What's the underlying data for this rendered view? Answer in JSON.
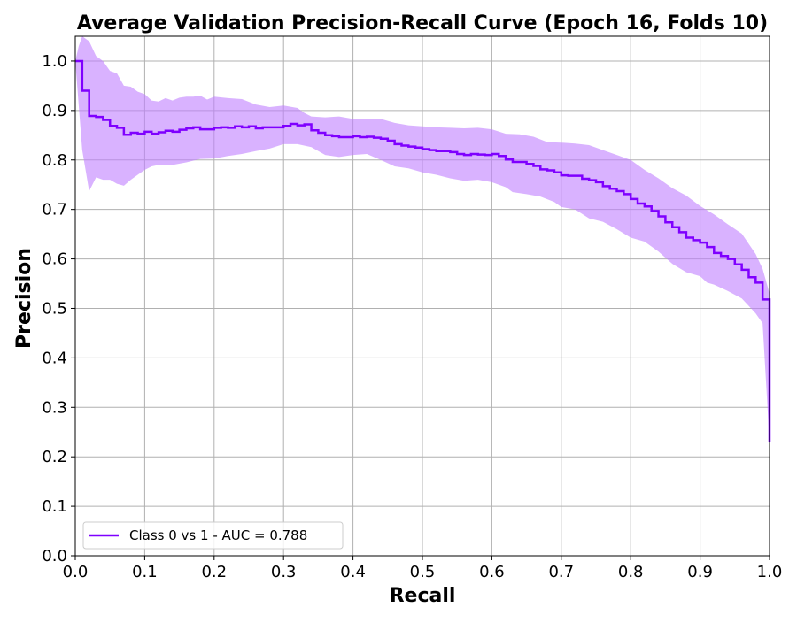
{
  "chart_data": {
    "type": "line",
    "title": "Average Validation Precision-Recall Curve (Epoch 16, Folds 10)",
    "xlabel": "Recall",
    "ylabel": "Precision",
    "xlim": [
      0.0,
      1.0
    ],
    "ylim": [
      0.0,
      1.05
    ],
    "x_ticks": [
      "0.0",
      "0.1",
      "0.2",
      "0.3",
      "0.4",
      "0.5",
      "0.6",
      "0.7",
      "0.8",
      "0.9",
      "1.0"
    ],
    "y_ticks": [
      "0.0",
      "0.1",
      "0.2",
      "0.3",
      "0.4",
      "0.5",
      "0.6",
      "0.7",
      "0.8",
      "0.9",
      "1.0"
    ],
    "grid": true,
    "legend_position": "lower-left",
    "series": [
      {
        "name": "Class 0 vs 1  -  AUC = 0.788",
        "color": "#7f00ff",
        "band_color": "#bf7fff",
        "step": true,
        "points": [
          [
            0.0,
            1.0
          ],
          [
            0.01,
            0.94
          ],
          [
            0.02,
            0.889
          ],
          [
            0.03,
            0.887
          ],
          [
            0.04,
            0.881
          ],
          [
            0.05,
            0.869
          ],
          [
            0.06,
            0.865
          ],
          [
            0.07,
            0.851
          ],
          [
            0.08,
            0.855
          ],
          [
            0.09,
            0.853
          ],
          [
            0.1,
            0.857
          ],
          [
            0.11,
            0.853
          ],
          [
            0.12,
            0.856
          ],
          [
            0.13,
            0.859
          ],
          [
            0.14,
            0.857
          ],
          [
            0.15,
            0.861
          ],
          [
            0.16,
            0.864
          ],
          [
            0.17,
            0.866
          ],
          [
            0.18,
            0.862
          ],
          [
            0.19,
            0.862
          ],
          [
            0.2,
            0.865
          ],
          [
            0.21,
            0.866
          ],
          [
            0.22,
            0.865
          ],
          [
            0.23,
            0.868
          ],
          [
            0.24,
            0.866
          ],
          [
            0.25,
            0.868
          ],
          [
            0.26,
            0.864
          ],
          [
            0.27,
            0.866
          ],
          [
            0.28,
            0.866
          ],
          [
            0.29,
            0.866
          ],
          [
            0.3,
            0.869
          ],
          [
            0.31,
            0.873
          ],
          [
            0.32,
            0.87
          ],
          [
            0.33,
            0.872
          ],
          [
            0.34,
            0.86
          ],
          [
            0.35,
            0.855
          ],
          [
            0.36,
            0.85
          ],
          [
            0.37,
            0.848
          ],
          [
            0.38,
            0.846
          ],
          [
            0.39,
            0.846
          ],
          [
            0.4,
            0.848
          ],
          [
            0.41,
            0.846
          ],
          [
            0.42,
            0.847
          ],
          [
            0.43,
            0.845
          ],
          [
            0.44,
            0.843
          ],
          [
            0.45,
            0.839
          ],
          [
            0.46,
            0.832
          ],
          [
            0.47,
            0.829
          ],
          [
            0.48,
            0.827
          ],
          [
            0.49,
            0.825
          ],
          [
            0.5,
            0.822
          ],
          [
            0.51,
            0.82
          ],
          [
            0.52,
            0.818
          ],
          [
            0.53,
            0.818
          ],
          [
            0.54,
            0.816
          ],
          [
            0.55,
            0.812
          ],
          [
            0.56,
            0.81
          ],
          [
            0.57,
            0.812
          ],
          [
            0.58,
            0.811
          ],
          [
            0.59,
            0.81
          ],
          [
            0.6,
            0.812
          ],
          [
            0.61,
            0.808
          ],
          [
            0.62,
            0.801
          ],
          [
            0.63,
            0.796
          ],
          [
            0.64,
            0.796
          ],
          [
            0.65,
            0.792
          ],
          [
            0.66,
            0.788
          ],
          [
            0.67,
            0.781
          ],
          [
            0.68,
            0.779
          ],
          [
            0.69,
            0.775
          ],
          [
            0.7,
            0.769
          ],
          [
            0.71,
            0.768
          ],
          [
            0.72,
            0.768
          ],
          [
            0.73,
            0.762
          ],
          [
            0.74,
            0.759
          ],
          [
            0.75,
            0.755
          ],
          [
            0.76,
            0.747
          ],
          [
            0.77,
            0.742
          ],
          [
            0.78,
            0.737
          ],
          [
            0.79,
            0.731
          ],
          [
            0.8,
            0.721
          ],
          [
            0.81,
            0.712
          ],
          [
            0.82,
            0.706
          ],
          [
            0.83,
            0.697
          ],
          [
            0.84,
            0.686
          ],
          [
            0.85,
            0.674
          ],
          [
            0.86,
            0.664
          ],
          [
            0.87,
            0.654
          ],
          [
            0.88,
            0.643
          ],
          [
            0.89,
            0.638
          ],
          [
            0.9,
            0.633
          ],
          [
            0.91,
            0.624
          ],
          [
            0.92,
            0.612
          ],
          [
            0.93,
            0.606
          ],
          [
            0.94,
            0.6
          ],
          [
            0.95,
            0.589
          ],
          [
            0.96,
            0.578
          ],
          [
            0.97,
            0.563
          ],
          [
            0.98,
            0.552
          ],
          [
            0.99,
            0.518
          ],
          [
            1.0,
            0.23
          ]
        ],
        "band_upper": [
          [
            0.0,
            1.0
          ],
          [
            0.005,
            1.03
          ],
          [
            0.01,
            1.05
          ],
          [
            0.02,
            1.04
          ],
          [
            0.03,
            1.01
          ],
          [
            0.04,
            1.0
          ],
          [
            0.05,
            0.98
          ],
          [
            0.06,
            0.975
          ],
          [
            0.07,
            0.95
          ],
          [
            0.08,
            0.948
          ],
          [
            0.09,
            0.938
          ],
          [
            0.1,
            0.933
          ],
          [
            0.11,
            0.92
          ],
          [
            0.12,
            0.918
          ],
          [
            0.13,
            0.925
          ],
          [
            0.14,
            0.92
          ],
          [
            0.15,
            0.926
          ],
          [
            0.16,
            0.928
          ],
          [
            0.17,
            0.928
          ],
          [
            0.18,
            0.93
          ],
          [
            0.19,
            0.922
          ],
          [
            0.2,
            0.928
          ],
          [
            0.22,
            0.925
          ],
          [
            0.24,
            0.923
          ],
          [
            0.26,
            0.912
          ],
          [
            0.28,
            0.907
          ],
          [
            0.3,
            0.91
          ],
          [
            0.32,
            0.905
          ],
          [
            0.33,
            0.895
          ],
          [
            0.34,
            0.888
          ],
          [
            0.36,
            0.886
          ],
          [
            0.38,
            0.888
          ],
          [
            0.4,
            0.883
          ],
          [
            0.42,
            0.882
          ],
          [
            0.44,
            0.883
          ],
          [
            0.46,
            0.875
          ],
          [
            0.48,
            0.87
          ],
          [
            0.5,
            0.868
          ],
          [
            0.52,
            0.866
          ],
          [
            0.54,
            0.865
          ],
          [
            0.56,
            0.864
          ],
          [
            0.58,
            0.865
          ],
          [
            0.6,
            0.862
          ],
          [
            0.62,
            0.853
          ],
          [
            0.64,
            0.852
          ],
          [
            0.66,
            0.847
          ],
          [
            0.68,
            0.836
          ],
          [
            0.7,
            0.835
          ],
          [
            0.72,
            0.833
          ],
          [
            0.74,
            0.83
          ],
          [
            0.76,
            0.82
          ],
          [
            0.78,
            0.81
          ],
          [
            0.8,
            0.8
          ],
          [
            0.82,
            0.78
          ],
          [
            0.84,
            0.763
          ],
          [
            0.86,
            0.743
          ],
          [
            0.88,
            0.728
          ],
          [
            0.9,
            0.707
          ],
          [
            0.92,
            0.69
          ],
          [
            0.94,
            0.67
          ],
          [
            0.96,
            0.651
          ],
          [
            0.98,
            0.61
          ],
          [
            0.99,
            0.58
          ],
          [
            1.0,
            0.53
          ]
        ],
        "band_lower": [
          [
            0.0,
            1.0
          ],
          [
            0.01,
            0.82
          ],
          [
            0.02,
            0.737
          ],
          [
            0.03,
            0.765
          ],
          [
            0.04,
            0.76
          ],
          [
            0.05,
            0.76
          ],
          [
            0.06,
            0.752
          ],
          [
            0.07,
            0.748
          ],
          [
            0.08,
            0.76
          ],
          [
            0.09,
            0.77
          ],
          [
            0.1,
            0.78
          ],
          [
            0.11,
            0.787
          ],
          [
            0.12,
            0.79
          ],
          [
            0.14,
            0.79
          ],
          [
            0.16,
            0.795
          ],
          [
            0.18,
            0.802
          ],
          [
            0.2,
            0.803
          ],
          [
            0.22,
            0.808
          ],
          [
            0.24,
            0.812
          ],
          [
            0.26,
            0.818
          ],
          [
            0.28,
            0.823
          ],
          [
            0.3,
            0.832
          ],
          [
            0.32,
            0.832
          ],
          [
            0.34,
            0.826
          ],
          [
            0.36,
            0.81
          ],
          [
            0.38,
            0.806
          ],
          [
            0.4,
            0.81
          ],
          [
            0.42,
            0.812
          ],
          [
            0.44,
            0.8
          ],
          [
            0.46,
            0.787
          ],
          [
            0.48,
            0.783
          ],
          [
            0.5,
            0.775
          ],
          [
            0.52,
            0.77
          ],
          [
            0.54,
            0.763
          ],
          [
            0.56,
            0.758
          ],
          [
            0.58,
            0.76
          ],
          [
            0.6,
            0.755
          ],
          [
            0.62,
            0.745
          ],
          [
            0.63,
            0.735
          ],
          [
            0.65,
            0.731
          ],
          [
            0.67,
            0.726
          ],
          [
            0.69,
            0.715
          ],
          [
            0.7,
            0.705
          ],
          [
            0.72,
            0.7
          ],
          [
            0.74,
            0.682
          ],
          [
            0.76,
            0.675
          ],
          [
            0.78,
            0.66
          ],
          [
            0.8,
            0.643
          ],
          [
            0.82,
            0.635
          ],
          [
            0.84,
            0.615
          ],
          [
            0.86,
            0.59
          ],
          [
            0.88,
            0.573
          ],
          [
            0.9,
            0.565
          ],
          [
            0.91,
            0.552
          ],
          [
            0.92,
            0.548
          ],
          [
            0.94,
            0.535
          ],
          [
            0.96,
            0.52
          ],
          [
            0.97,
            0.505
          ],
          [
            0.98,
            0.49
          ],
          [
            0.99,
            0.47
          ],
          [
            1.0,
            0.23
          ]
        ]
      }
    ]
  }
}
